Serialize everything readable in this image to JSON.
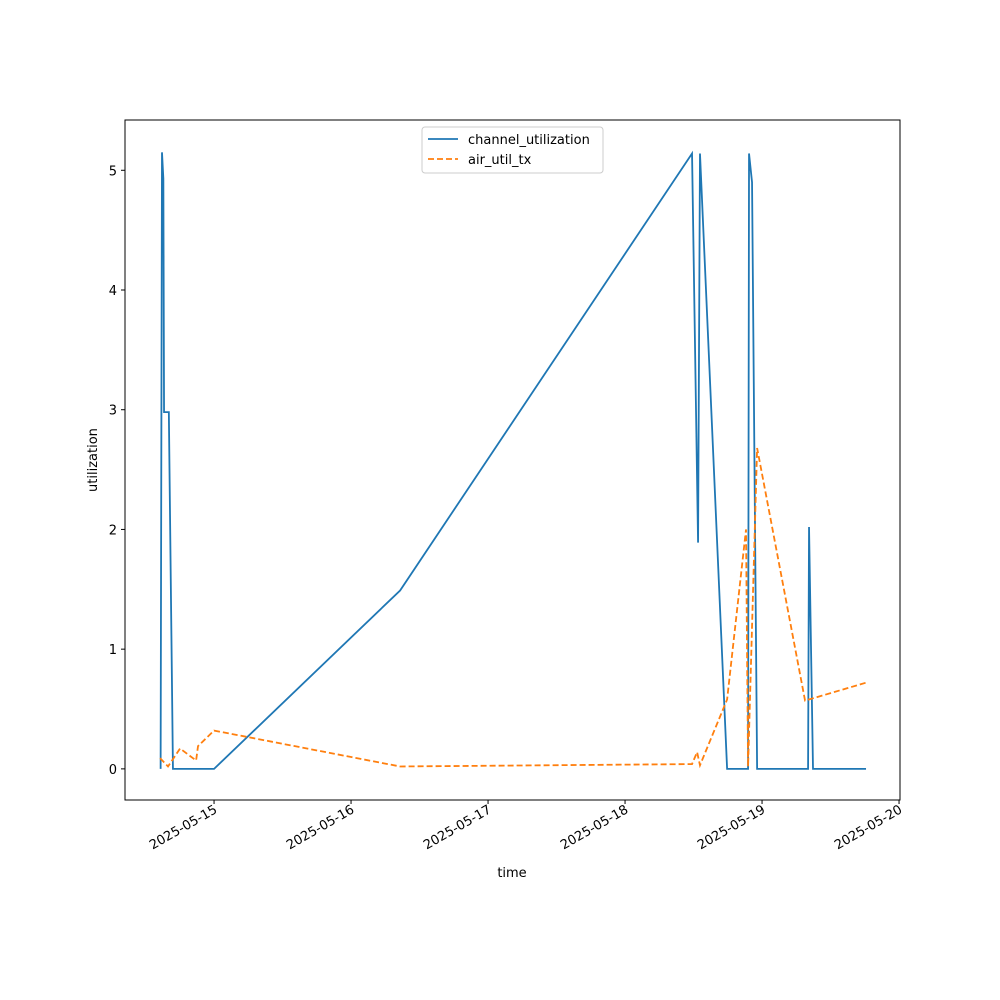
{
  "chart_data": {
    "type": "line",
    "xlabel": "time",
    "ylabel": "utilization",
    "xlim": [
      -0.65,
      5.007
    ],
    "ylim": [
      -0.26,
      5.42
    ],
    "xticks": [
      {
        "value": 0,
        "label": "2025-05-15"
      },
      {
        "value": 1,
        "label": "2025-05-16"
      },
      {
        "value": 2,
        "label": "2025-05-17"
      },
      {
        "value": 3,
        "label": "2025-05-18"
      },
      {
        "value": 4,
        "label": "2025-05-19"
      },
      {
        "value": 5,
        "label": "2025-05-20"
      }
    ],
    "yticks": [
      0,
      1,
      2,
      3,
      4,
      5
    ],
    "legend": "upper center",
    "series": [
      {
        "name": "channel_utilization",
        "color": "#1f77b4",
        "dash": "solid",
        "x": [
          -0.39,
          -0.38,
          -0.37,
          -0.365,
          -0.33,
          -0.3,
          0,
          1.358,
          3.489,
          3.533,
          3.547,
          3.745,
          3.898,
          3.905,
          3.927,
          3.964,
          4.336,
          4.343,
          4.372,
          4.759
        ],
        "values": [
          0,
          5.15,
          4.93,
          2.98,
          2.98,
          0,
          0,
          1.49,
          5.14,
          1.89,
          5.14,
          0,
          0,
          5.14,
          4.9,
          0,
          0,
          2.02,
          0,
          0
        ]
      },
      {
        "name": "air_util_tx",
        "color": "#ff7f0e",
        "dash": "dashed",
        "x": [
          -0.394,
          -0.336,
          -0.248,
          -0.131,
          -0.117,
          0,
          1.358,
          3.489,
          3.526,
          3.547,
          3.745,
          3.883,
          3.898,
          3.964,
          4.314,
          4.759
        ],
        "values": [
          0.09,
          0.02,
          0.17,
          0.07,
          0.19,
          0.32,
          0.02,
          0.04,
          0.14,
          0.03,
          0.58,
          2.0,
          0.02,
          2.68,
          0.57,
          0.72
        ]
      }
    ]
  }
}
